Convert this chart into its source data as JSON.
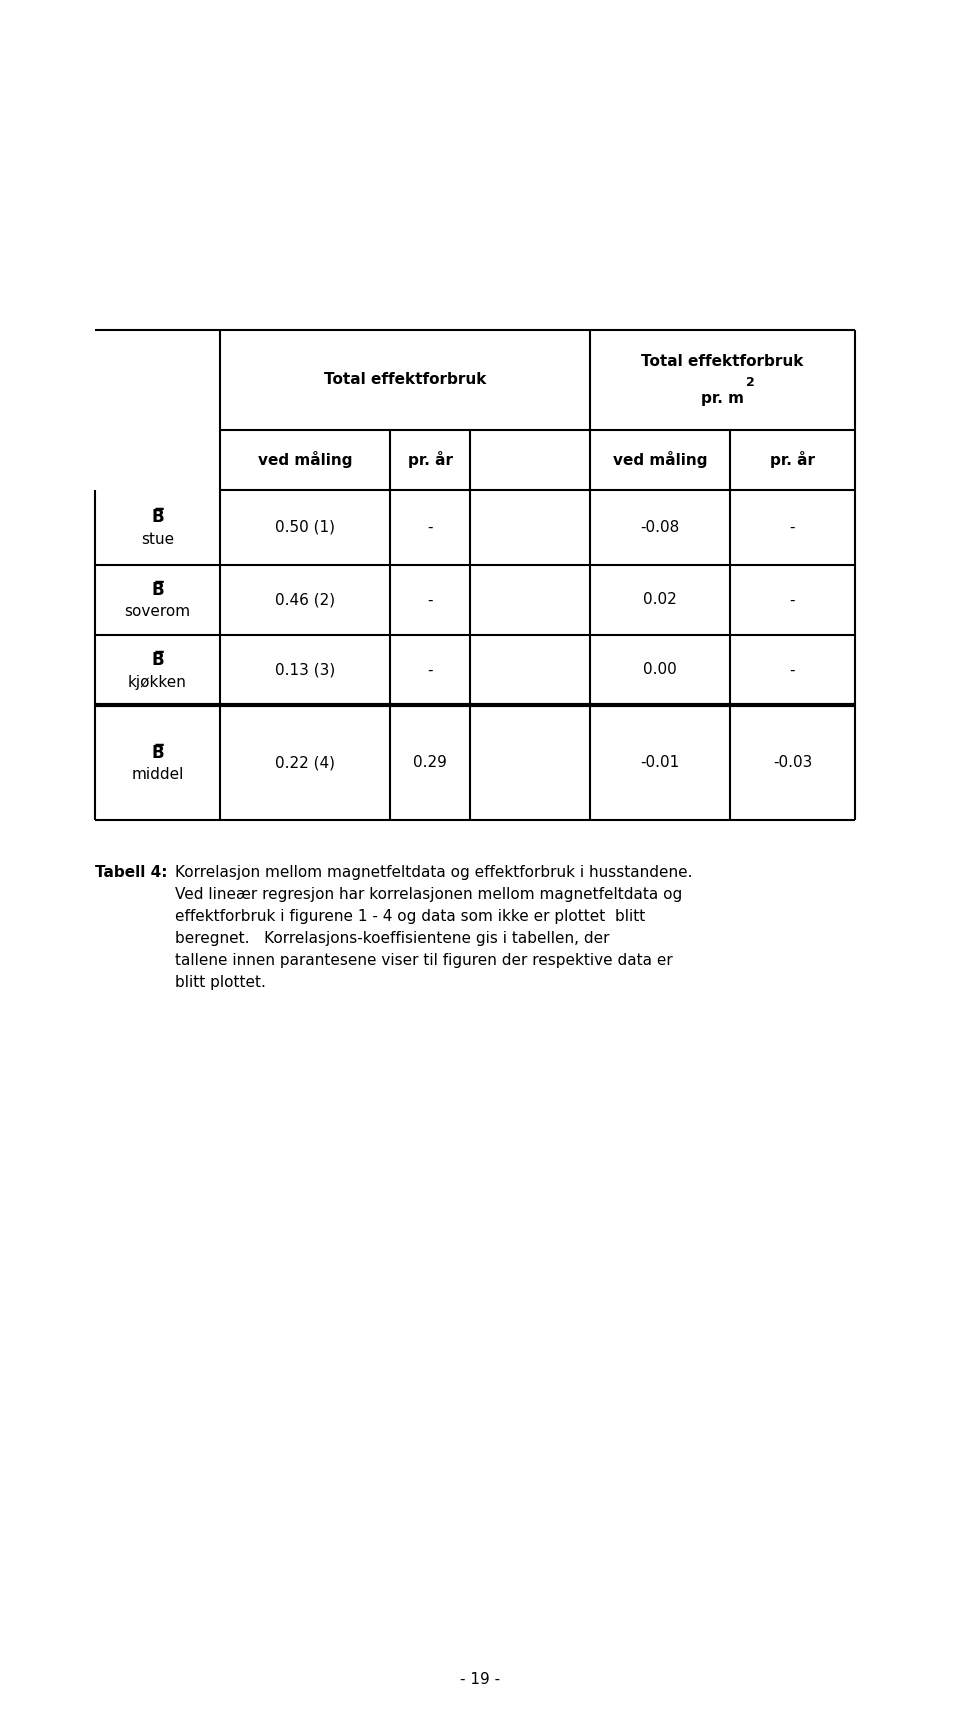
{
  "background_color": "#ffffff",
  "page_number": "- 19 -",
  "table": {
    "rows": [
      {
        "label_line1": "B̅",
        "label_line2": "stue",
        "values": [
          "0.50 (1)",
          "-",
          "-0.08",
          "-"
        ]
      },
      {
        "label_line1": "B̅",
        "label_line2": "soverom",
        "values": [
          "0.46 (2)",
          "-",
          "0.02",
          "-"
        ]
      },
      {
        "label_line1": "B̅",
        "label_line2": "kjøkken",
        "values": [
          "0.13 (3)",
          "-",
          "0.00",
          "-"
        ]
      },
      {
        "label_line1": "B̅",
        "label_line2": "middel",
        "values": [
          "0.22 (4)",
          "0.29",
          "-0.01",
          "-0.03"
        ]
      }
    ]
  },
  "caption_label": "Tabell 4:",
  "caption_text_lines": [
    " Korrelasjon mellom magnetfeltdata og effektforbruk i husstandene.",
    "     Ved lineær regresjon har korrelasjonen mellom magnetfeltdata og",
    "     effektforbruk i figurene 1 - 4 og data som ikke er plottet  blitt",
    "     beregnet.   Korrelasjons-koeffisientene gis i tabellen, der",
    "     tallene innen parantesene viser til figuren der respektive data er",
    "     blitt plottet."
  ]
}
